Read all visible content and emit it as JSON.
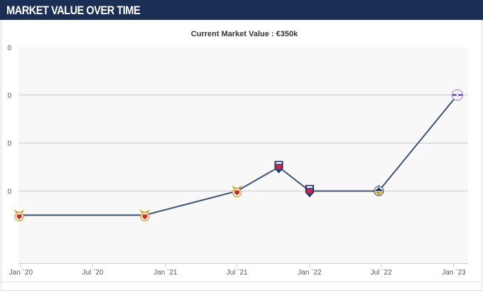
{
  "header": {
    "title": "MARKET VALUE OVER TIME"
  },
  "chart_data": {
    "type": "line",
    "title": "Current Market Value : €350k",
    "xlabel": "",
    "ylabel": "",
    "x_tick_labels": [
      "Jan ´20",
      "Jul ´20",
      "Jan ´21",
      "Jul ´21",
      "Jan ´22",
      "Jul ´22",
      "Jan ´23"
    ],
    "y_tick_labels": [
      "0",
      "0",
      "0",
      "0"
    ],
    "grid": true,
    "legend": "none",
    "series": [
      {
        "color": "#3d5478",
        "points": [
          {
            "x": "2019-12-28",
            "y": 100,
            "club_icon": "benfica-crest-icon"
          },
          {
            "x": "2020-11-10",
            "y": 100,
            "club_icon": "benfica-crest-icon"
          },
          {
            "x": "2021-07-01",
            "y": 150,
            "club_icon": "benfica-crest-icon"
          },
          {
            "x": "2021-10-15",
            "y": 200,
            "club_icon": "red-blue-crest-icon"
          },
          {
            "x": "2022-01-01",
            "y": 150,
            "club_icon": "red-blue-crest-icon"
          },
          {
            "x": "2022-06-25",
            "y": 150,
            "club_icon": "sturm-crest-icon"
          },
          {
            "x": "2023-01-10",
            "y": 350,
            "club_icon": "white-purple-crest-icon"
          }
        ]
      }
    ]
  }
}
